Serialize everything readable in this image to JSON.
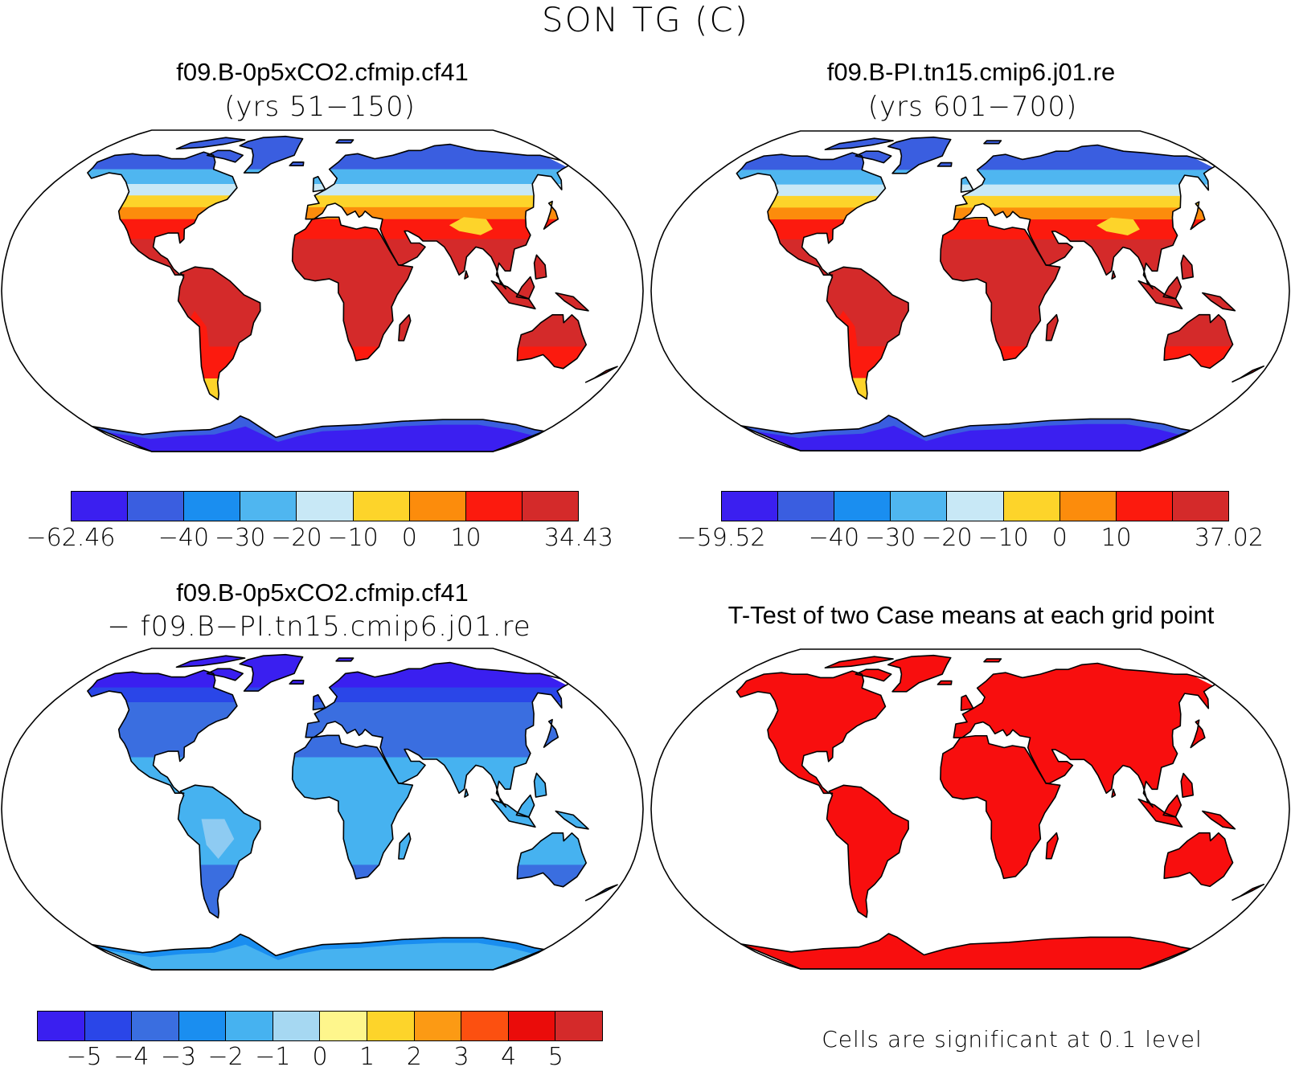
{
  "title": "SON TG (C)",
  "panels": [
    {
      "title": "f09.B-0p5xCO2.cfmip.cf41",
      "subtitle": "(yrs 51−150)",
      "scheme": "abs1"
    },
    {
      "title": "f09.B-PI.tn15.cmip6.j01.re",
      "subtitle": "(yrs 601−700)",
      "scheme": "abs2"
    },
    {
      "title": "f09.B-0p5xCO2.cfmip.cf41",
      "subtitle": "− f09.B−PI.tn15.cmip6.j01.re",
      "scheme": "diff"
    },
    {
      "title": "T-Test of two Case means at each grid point",
      "subtitle": "",
      "scheme": "ttest"
    }
  ],
  "colorbars": {
    "abs1": {
      "colors": [
        "#3b1ff0",
        "#3a5ee0",
        "#1a8ef0",
        "#4fb6f0",
        "#c8e8f6",
        "#fdd42a",
        "#fc8c0c",
        "#fc1a0e",
        "#d42a2a"
      ],
      "labels": [
        "−62.46",
        "−40",
        "−30",
        "−20",
        "−10",
        "0",
        "10",
        "34.43"
      ]
    },
    "abs2": {
      "colors": [
        "#3b1ff0",
        "#3a5ee0",
        "#1a8ef0",
        "#4fb6f0",
        "#c8e8f6",
        "#fdd42a",
        "#fc8c0c",
        "#fc1a0e",
        "#d42a2a"
      ],
      "labels": [
        "−59.52",
        "−40",
        "−30",
        "−20",
        "−10",
        "0",
        "10",
        "37.02"
      ]
    },
    "diff": {
      "colors": [
        "#3a1ff0",
        "#2a46e8",
        "#3a6ee0",
        "#1a8ef0",
        "#46b2f0",
        "#a6d8f2",
        "#fef68c",
        "#fdd42a",
        "#fc9a14",
        "#fc5010",
        "#ea0c0a",
        "#d42a2a"
      ],
      "labels": [
        "−5",
        "−4",
        "−3",
        "−2",
        "−1",
        "0",
        "1",
        "2",
        "3",
        "4",
        "5"
      ]
    }
  },
  "note": "Cells are significant at 0.1 level",
  "scheme_colors": {
    "abs1": {
      "polar": "#3a5ee0",
      "cold": "#4fb6f0",
      "cool": "#c8e8f6",
      "mild": "#fdd42a",
      "warm": "#fc8c0c",
      "hot": "#fc1a0e",
      "tropic": "#d42a2a",
      "antarctic": "#3b1ff0",
      "antarctic_edge": "#3a5ee0"
    },
    "abs2": {
      "polar": "#3a5ee0",
      "cold": "#4fb6f0",
      "cool": "#c8e8f6",
      "mild": "#fdd42a",
      "warm": "#fc8c0c",
      "hot": "#fc1a0e",
      "tropic": "#d42a2a",
      "antarctic": "#3b1ff0",
      "antarctic_edge": "#3a5ee0"
    },
    "diff": {
      "polar": "#3a1ff0",
      "cold": "#2a46e8",
      "cool": "#3a6ee0",
      "mild": "#3a6ee0",
      "warm": "#3a6ee0",
      "hot": "#3a6ee0",
      "tropic": "#46b2f0",
      "antarctic": "#46b2f0",
      "antarctic_edge": "#1a8ef0"
    },
    "ttest": {
      "polar": "#f80e0e",
      "cold": "#f80e0e",
      "cool": "#f80e0e",
      "mild": "#f80e0e",
      "warm": "#f80e0e",
      "hot": "#f80e0e",
      "tropic": "#f80e0e",
      "antarctic": "#f80e0e",
      "antarctic_edge": "#f80e0e"
    }
  }
}
